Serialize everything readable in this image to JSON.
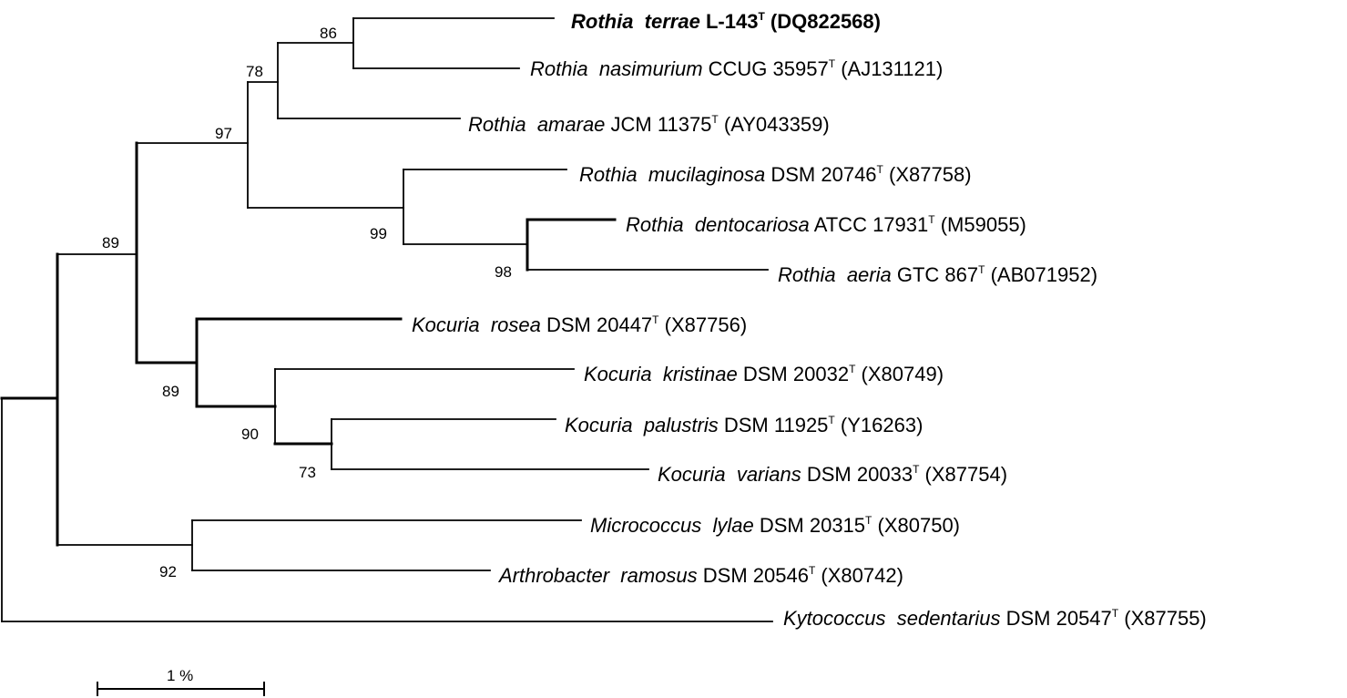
{
  "tree": {
    "taxa": [
      {
        "id": "t1",
        "species": "Rothia  terrae",
        "strain": "L-143",
        "accession": "(DQ822568)",
        "highlight": true
      },
      {
        "id": "t2",
        "species": "Rothia  nasimurium",
        "strain": "CCUG 35957",
        "accession": "(AJ131121)"
      },
      {
        "id": "t3",
        "species": "Rothia  amarae",
        "strain": "JCM 11375",
        "accession": "(AY043359)"
      },
      {
        "id": "t4",
        "species": "Rothia  mucilaginosa",
        "strain": "DSM 20746",
        "accession": "(X87758)"
      },
      {
        "id": "t5",
        "species": "Rothia  dentocariosa",
        "strain": "ATCC 17931",
        "accession": "(M59055)"
      },
      {
        "id": "t6",
        "species": "Rothia  aeria",
        "strain": "GTC 867",
        "accession": "(AB071952)"
      },
      {
        "id": "t7",
        "species": "Kocuria  rosea",
        "strain": "DSM 20447",
        "accession": "(X87756)"
      },
      {
        "id": "t8",
        "species": "Kocuria  kristinae",
        "strain": "DSM 20032",
        "accession": "(X80749)"
      },
      {
        "id": "t9",
        "species": "Kocuria  palustris",
        "strain": "DSM 11925",
        "accession": "(Y16263)"
      },
      {
        "id": "t10",
        "species": "Kocuria  varians",
        "strain": "DSM 20033",
        "accession": "(X87754)"
      },
      {
        "id": "t11",
        "species": "Micrococcus  lylae",
        "strain": "DSM 20315",
        "accession": "(X80750)"
      },
      {
        "id": "t12",
        "species": "Arthrobacter  ramosus",
        "strain": "DSM 20546",
        "accession": "(X80742)"
      },
      {
        "id": "t13",
        "species": "Kytococcus  sedentarius",
        "strain": "DSM 20547",
        "accession": "(X87755)"
      }
    ],
    "type_strain_mark": "T",
    "bootstrap": {
      "n_terrae_nasimurium": "86",
      "n_rothia_top": "78",
      "n_rothia_all": "97",
      "n_mucilaginosa_clade": "99",
      "n_dentocariosa_aeria": "98",
      "n_rothia_kocuria": "89",
      "n_kocuria_all": "89",
      "n_kocuria_sub": "90",
      "n_palustris_varians": "73",
      "n_micrococcus_arthrobacter": "92"
    },
    "scale_bar": {
      "label": "1 %"
    }
  }
}
